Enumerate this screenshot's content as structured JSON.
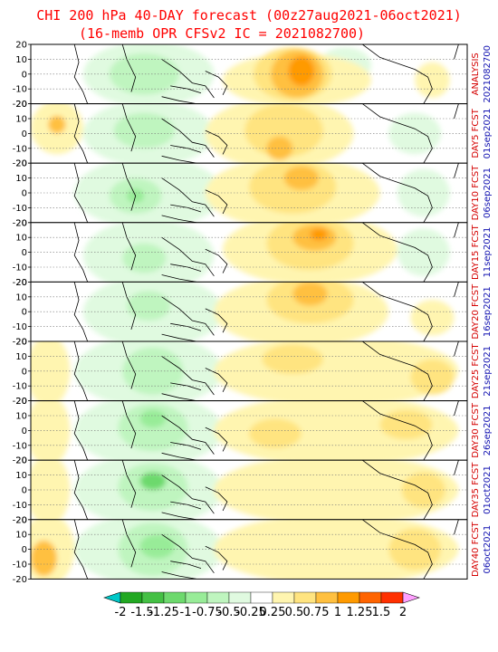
{
  "chart_data": {
    "type": "heatmap",
    "title_line1": "CHI 200 hPa 40-DAY forecast (00z27aug2021-06oct2021)",
    "title_line2": "(16-memb OPR CFSv2 IC = 2021082700)",
    "ytick_labels": [
      "20",
      "10",
      "0",
      "-10",
      "-20"
    ],
    "panels": [
      {
        "label1": "ANALYSIS",
        "label2": "2021082700"
      },
      {
        "label1": "DAY5 FCST",
        "label2": "01sep2021"
      },
      {
        "label1": "DAY10 FCST",
        "label2": "06sep2021"
      },
      {
        "label1": "DAY15 FCST",
        "label2": "11sep2021"
      },
      {
        "label1": "DAY20 FCST",
        "label2": "16sep2021"
      },
      {
        "label1": "DAY25 FCST",
        "label2": "21sep2021"
      },
      {
        "label1": "DAY30 FCST",
        "label2": "26sep2021"
      },
      {
        "label1": "DAY35 FCST",
        "label2": "01oct2021"
      },
      {
        "label1": "DAY40 FCST",
        "label2": "06oct2021"
      }
    ],
    "colorbar": {
      "labels": [
        "-2",
        "-1.5",
        "-1.25",
        "-1",
        "-0.75",
        "-0.5",
        "-0.25",
        "0.25",
        "0.5",
        "0.75",
        "1",
        "1.25",
        "1.5",
        "2"
      ],
      "colors": [
        "#00c8c8",
        "#22a822",
        "#44c044",
        "#6dd96d",
        "#98ec98",
        "#bff5bf",
        "#e0fae0",
        "#ffffff",
        "#fff5b0",
        "#ffe480",
        "#ffc040",
        "#ff9a00",
        "#ff6400",
        "#ff3000",
        "#ffa0ff"
      ]
    },
    "blobs": [
      [
        {
          "c": 7,
          "x": 0.06,
          "y": 0.55,
          "rx": 0.06,
          "ry": 0.35
        },
        {
          "c": 6,
          "x": 0.27,
          "y": 0.5,
          "rx": 0.15,
          "ry": 0.55
        },
        {
          "c": 5,
          "x": 0.26,
          "y": 0.5,
          "rx": 0.08,
          "ry": 0.35
        },
        {
          "c": 6,
          "x": 0.72,
          "y": 0.35,
          "rx": 0.06,
          "ry": 0.3
        },
        {
          "c": 8,
          "x": 0.61,
          "y": 0.6,
          "rx": 0.17,
          "ry": 0.45
        },
        {
          "c": 9,
          "x": 0.6,
          "y": 0.5,
          "rx": 0.09,
          "ry": 0.45
        },
        {
          "c": 10,
          "x": 0.61,
          "y": 0.5,
          "rx": 0.06,
          "ry": 0.4
        },
        {
          "c": 11,
          "x": 0.62,
          "y": 0.45,
          "rx": 0.03,
          "ry": 0.25
        },
        {
          "c": 8,
          "x": 0.92,
          "y": 0.6,
          "rx": 0.04,
          "ry": 0.3
        }
      ],
      [
        {
          "c": 8,
          "x": 0.06,
          "y": 0.4,
          "rx": 0.06,
          "ry": 0.45
        },
        {
          "c": 10,
          "x": 0.06,
          "y": 0.35,
          "rx": 0.02,
          "ry": 0.15
        },
        {
          "c": 6,
          "x": 0.27,
          "y": 0.5,
          "rx": 0.15,
          "ry": 0.55
        },
        {
          "c": 5,
          "x": 0.26,
          "y": 0.45,
          "rx": 0.07,
          "ry": 0.3
        },
        {
          "c": 8,
          "x": 0.57,
          "y": 0.5,
          "rx": 0.17,
          "ry": 0.6
        },
        {
          "c": 9,
          "x": 0.58,
          "y": 0.45,
          "rx": 0.09,
          "ry": 0.45
        },
        {
          "c": 10,
          "x": 0.57,
          "y": 0.75,
          "rx": 0.03,
          "ry": 0.2
        },
        {
          "c": 6,
          "x": 0.88,
          "y": 0.5,
          "rx": 0.06,
          "ry": 0.35
        }
      ],
      [
        {
          "c": 6,
          "x": 0.27,
          "y": 0.5,
          "rx": 0.17,
          "ry": 0.6
        },
        {
          "c": 5,
          "x": 0.24,
          "y": 0.55,
          "rx": 0.06,
          "ry": 0.3
        },
        {
          "c": 4,
          "x": 0.24,
          "y": 0.55,
          "rx": 0.02,
          "ry": 0.12
        },
        {
          "c": 8,
          "x": 0.6,
          "y": 0.5,
          "rx": 0.2,
          "ry": 0.6
        },
        {
          "c": 9,
          "x": 0.6,
          "y": 0.4,
          "rx": 0.1,
          "ry": 0.45
        },
        {
          "c": 10,
          "x": 0.62,
          "y": 0.25,
          "rx": 0.04,
          "ry": 0.2
        },
        {
          "c": 6,
          "x": 0.9,
          "y": 0.5,
          "rx": 0.06,
          "ry": 0.4
        }
      ],
      [
        {
          "c": 6,
          "x": 0.27,
          "y": 0.55,
          "rx": 0.15,
          "ry": 0.6
        },
        {
          "c": 5,
          "x": 0.26,
          "y": 0.6,
          "rx": 0.05,
          "ry": 0.25
        },
        {
          "c": 8,
          "x": 0.64,
          "y": 0.45,
          "rx": 0.2,
          "ry": 0.6
        },
        {
          "c": 9,
          "x": 0.64,
          "y": 0.35,
          "rx": 0.1,
          "ry": 0.45
        },
        {
          "c": 10,
          "x": 0.65,
          "y": 0.25,
          "rx": 0.05,
          "ry": 0.22
        },
        {
          "c": 11,
          "x": 0.66,
          "y": 0.2,
          "rx": 0.02,
          "ry": 0.1
        },
        {
          "c": 6,
          "x": 0.9,
          "y": 0.5,
          "rx": 0.06,
          "ry": 0.4
        }
      ],
      [
        {
          "c": 6,
          "x": 0.28,
          "y": 0.5,
          "rx": 0.16,
          "ry": 0.6
        },
        {
          "c": 5,
          "x": 0.27,
          "y": 0.4,
          "rx": 0.05,
          "ry": 0.25
        },
        {
          "c": 8,
          "x": 0.62,
          "y": 0.5,
          "rx": 0.2,
          "ry": 0.6
        },
        {
          "c": 9,
          "x": 0.64,
          "y": 0.3,
          "rx": 0.1,
          "ry": 0.4
        },
        {
          "c": 10,
          "x": 0.64,
          "y": 0.2,
          "rx": 0.04,
          "ry": 0.2
        },
        {
          "c": 8,
          "x": 0.92,
          "y": 0.6,
          "rx": 0.05,
          "ry": 0.3
        }
      ],
      [
        {
          "c": 8,
          "x": 0.04,
          "y": 0.5,
          "rx": 0.05,
          "ry": 0.6
        },
        {
          "c": 6,
          "x": 0.27,
          "y": 0.5,
          "rx": 0.17,
          "ry": 0.6
        },
        {
          "c": 5,
          "x": 0.28,
          "y": 0.5,
          "rx": 0.07,
          "ry": 0.4
        },
        {
          "c": 8,
          "x": 0.7,
          "y": 0.5,
          "rx": 0.28,
          "ry": 0.6
        },
        {
          "c": 9,
          "x": 0.6,
          "y": 0.3,
          "rx": 0.07,
          "ry": 0.25
        },
        {
          "c": 9,
          "x": 0.92,
          "y": 0.6,
          "rx": 0.05,
          "ry": 0.3
        }
      ],
      [
        {
          "c": 8,
          "x": 0.04,
          "y": 0.5,
          "rx": 0.05,
          "ry": 0.6
        },
        {
          "c": 6,
          "x": 0.27,
          "y": 0.5,
          "rx": 0.17,
          "ry": 0.6
        },
        {
          "c": 5,
          "x": 0.28,
          "y": 0.45,
          "rx": 0.08,
          "ry": 0.4
        },
        {
          "c": 4,
          "x": 0.28,
          "y": 0.3,
          "rx": 0.03,
          "ry": 0.15
        },
        {
          "c": 8,
          "x": 0.7,
          "y": 0.5,
          "rx": 0.28,
          "ry": 0.6
        },
        {
          "c": 9,
          "x": 0.56,
          "y": 0.55,
          "rx": 0.06,
          "ry": 0.25
        },
        {
          "c": 9,
          "x": 0.86,
          "y": 0.4,
          "rx": 0.06,
          "ry": 0.25
        }
      ],
      [
        {
          "c": 8,
          "x": 0.04,
          "y": 0.5,
          "rx": 0.05,
          "ry": 0.6
        },
        {
          "c": 6,
          "x": 0.27,
          "y": 0.5,
          "rx": 0.17,
          "ry": 0.6
        },
        {
          "c": 5,
          "x": 0.28,
          "y": 0.45,
          "rx": 0.08,
          "ry": 0.4
        },
        {
          "c": 3,
          "x": 0.28,
          "y": 0.35,
          "rx": 0.03,
          "ry": 0.15
        },
        {
          "c": 8,
          "x": 0.7,
          "y": 0.5,
          "rx": 0.28,
          "ry": 0.6
        },
        {
          "c": 9,
          "x": 0.9,
          "y": 0.5,
          "rx": 0.05,
          "ry": 0.3
        }
      ],
      [
        {
          "c": 8,
          "x": 0.04,
          "y": 0.5,
          "rx": 0.06,
          "ry": 0.6
        },
        {
          "c": 10,
          "x": 0.03,
          "y": 0.65,
          "rx": 0.03,
          "ry": 0.3
        },
        {
          "c": 6,
          "x": 0.27,
          "y": 0.5,
          "rx": 0.17,
          "ry": 0.6
        },
        {
          "c": 5,
          "x": 0.28,
          "y": 0.5,
          "rx": 0.08,
          "ry": 0.45
        },
        {
          "c": 4,
          "x": 0.29,
          "y": 0.45,
          "rx": 0.04,
          "ry": 0.2
        },
        {
          "c": 8,
          "x": 0.7,
          "y": 0.5,
          "rx": 0.28,
          "ry": 0.6
        },
        {
          "c": 9,
          "x": 0.88,
          "y": 0.5,
          "rx": 0.06,
          "ry": 0.35
        }
      ]
    ]
  }
}
